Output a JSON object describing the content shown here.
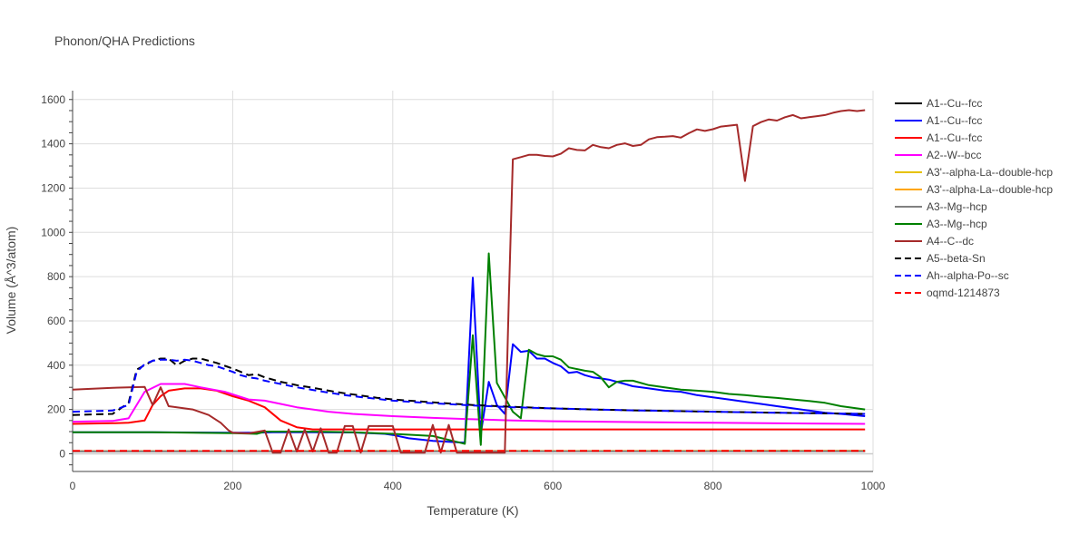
{
  "chart_data": {
    "type": "line",
    "title": "Phonon/QHA Predictions",
    "xlabel": "Temperature (K)",
    "ylabel": "Volume (Å^3/atom)",
    "xlim": [
      0,
      1000
    ],
    "ylim": [
      -80,
      1640
    ],
    "xticks": [
      0,
      200,
      400,
      600,
      800,
      1000
    ],
    "yticks": [
      0,
      200,
      400,
      600,
      800,
      1000,
      1200,
      1400,
      1600
    ],
    "grid": true,
    "legend_position": "right",
    "series": [
      {
        "name": "A1--Cu--fcc",
        "color": "#000000",
        "dash": "solid",
        "x": [
          0,
          100,
          200,
          300,
          400,
          500,
          600,
          700,
          800,
          900,
          990
        ],
        "y": [
          11.6,
          11.6,
          11.7,
          11.8,
          11.9,
          12.0,
          12.1,
          12.2,
          12.3,
          12.4,
          12.5
        ]
      },
      {
        "name": "A1--Cu--fcc",
        "color": "#0000ff",
        "dash": "solid",
        "x": [
          0,
          100,
          200,
          230,
          250,
          300,
          350,
          390,
          400,
          420,
          450,
          490,
          500,
          510,
          520,
          530,
          540,
          550,
          560,
          570,
          580,
          590,
          600,
          610,
          620,
          630,
          640,
          650,
          660,
          670,
          680,
          690,
          700,
          720,
          740,
          760,
          780,
          800,
          820,
          840,
          860,
          880,
          900,
          920,
          940,
          960,
          990
        ],
        "y": [
          97,
          97,
          95,
          95,
          97,
          97,
          96,
          90,
          85,
          70,
          58,
          50,
          795,
          90,
          325,
          220,
          180,
          495,
          460,
          465,
          430,
          430,
          410,
          395,
          365,
          370,
          355,
          345,
          340,
          335,
          325,
          315,
          305,
          295,
          285,
          280,
          265,
          255,
          245,
          235,
          225,
          215,
          205,
          195,
          185,
          180,
          170
        ]
      },
      {
        "name": "A1--Cu--fcc",
        "color": "#ff0000",
        "dash": "solid",
        "x": [
          0,
          50,
          70,
          90,
          100,
          110,
          120,
          140,
          160,
          180,
          200,
          220,
          240,
          260,
          280,
          300,
          400,
          500,
          600,
          700,
          800,
          900,
          990
        ],
        "y": [
          135,
          138,
          140,
          150,
          220,
          260,
          285,
          295,
          295,
          285,
          260,
          240,
          210,
          150,
          120,
          110,
          110,
          110,
          110,
          110,
          110,
          110,
          110
        ]
      },
      {
        "name": "A2--W--bcc",
        "color": "#ff00ff",
        "dash": "solid",
        "x": [
          0,
          50,
          70,
          90,
          110,
          140,
          160,
          190,
          220,
          240,
          260,
          280,
          300,
          320,
          350,
          400,
          450,
          500,
          550,
          600,
          700,
          800,
          900,
          990
        ],
        "y": [
          145,
          148,
          160,
          280,
          315,
          315,
          300,
          280,
          245,
          240,
          225,
          210,
          200,
          190,
          180,
          170,
          162,
          156,
          150,
          147,
          143,
          140,
          137,
          135
        ]
      },
      {
        "name": "A3'--alpha-La--double-hcp",
        "color": "#e6c200",
        "dash": "solid",
        "x": [
          0,
          200,
          400,
          600,
          800,
          990
        ],
        "y": [
          12.0,
          12.1,
          12.2,
          12.3,
          12.4,
          12.5
        ]
      },
      {
        "name": "A3'--alpha-La--double-hcp",
        "color": "#ffa500",
        "dash": "solid",
        "x": [
          0,
          200,
          400,
          600,
          800,
          990
        ],
        "y": [
          12.2,
          12.3,
          12.4,
          12.5,
          12.6,
          12.7
        ]
      },
      {
        "name": "A3--Mg--hcp",
        "color": "#808080",
        "dash": "solid",
        "x": [
          0,
          200,
          400,
          600,
          800,
          990
        ],
        "y": [
          11.0,
          11.1,
          11.2,
          11.3,
          11.4,
          11.5
        ]
      },
      {
        "name": "A3--Mg--hcp",
        "color": "#008000",
        "dash": "solid",
        "x": [
          0,
          100,
          200,
          230,
          240,
          300,
          350,
          400,
          450,
          490,
          500,
          510,
          520,
          530,
          550,
          560,
          570,
          580,
          590,
          600,
          610,
          620,
          640,
          650,
          660,
          670,
          680,
          690,
          700,
          720,
          740,
          760,
          780,
          800,
          820,
          840,
          860,
          880,
          900,
          920,
          940,
          960,
          990
        ],
        "y": [
          97,
          97,
          93,
          90,
          100,
          100,
          97,
          90,
          80,
          45,
          535,
          40,
          905,
          320,
          190,
          160,
          470,
          450,
          440,
          440,
          425,
          390,
          375,
          370,
          345,
          300,
          325,
          330,
          330,
          310,
          300,
          290,
          285,
          280,
          270,
          265,
          258,
          252,
          245,
          238,
          230,
          215,
          200
        ]
      },
      {
        "name": "A4--C--dc",
        "color": "#a52a2a",
        "dash": "solid",
        "x": [
          0,
          50,
          90,
          100,
          110,
          120,
          150,
          170,
          185,
          195,
          200,
          220,
          240,
          250,
          260,
          270,
          280,
          290,
          300,
          310,
          320,
          330,
          340,
          350,
          360,
          370,
          390,
          400,
          410,
          420,
          430,
          440,
          450,
          460,
          470,
          480,
          490,
          500,
          510,
          520,
          530,
          540,
          545,
          550,
          560,
          570,
          580,
          590,
          600,
          610,
          620,
          630,
          640,
          650,
          660,
          670,
          680,
          690,
          700,
          710,
          720,
          730,
          740,
          750,
          760,
          770,
          780,
          790,
          800,
          810,
          820,
          830,
          840,
          850,
          860,
          870,
          880,
          890,
          900,
          910,
          920,
          930,
          940,
          950,
          960,
          970,
          980,
          990
        ],
        "y": [
          290,
          298,
          302,
          220,
          300,
          215,
          200,
          175,
          140,
          105,
          95,
          92,
          105,
          5,
          5,
          110,
          10,
          110,
          10,
          115,
          5,
          5,
          125,
          125,
          5,
          125,
          125,
          125,
          5,
          5,
          5,
          5,
          130,
          5,
          130,
          5,
          5,
          5,
          5,
          5,
          5,
          5,
          700,
          1330,
          1340,
          1350,
          1350,
          1345,
          1343,
          1355,
          1380,
          1372,
          1370,
          1395,
          1385,
          1380,
          1395,
          1402,
          1390,
          1395,
          1420,
          1430,
          1432,
          1435,
          1428,
          1448,
          1465,
          1458,
          1466,
          1478,
          1482,
          1486,
          1232,
          1480,
          1498,
          1510,
          1505,
          1520,
          1530,
          1515,
          1520,
          1525,
          1530,
          1540,
          1548,
          1552,
          1548,
          1552
        ]
      },
      {
        "name": "A5--beta-Sn",
        "color": "#000000",
        "dash": "dash",
        "x": [
          0,
          50,
          70,
          80,
          90,
          100,
          110,
          120,
          130,
          140,
          150,
          160,
          170,
          180,
          200,
          210,
          220,
          230,
          240,
          260,
          280,
          300,
          320,
          340,
          360,
          380,
          400,
          450,
          500,
          550,
          600,
          650,
          700,
          750,
          800,
          850,
          900,
          950,
          990
        ],
        "y": [
          175,
          180,
          230,
          380,
          400,
          420,
          430,
          430,
          400,
          420,
          430,
          430,
          420,
          410,
          385,
          370,
          355,
          360,
          345,
          325,
          310,
          298,
          285,
          273,
          263,
          253,
          245,
          232,
          220,
          212,
          205,
          200,
          196,
          193,
          190,
          187,
          184,
          182,
          180
        ]
      },
      {
        "name": "Ah--alpha-Po--sc",
        "color": "#0000ff",
        "dash": "dash",
        "x": [
          0,
          50,
          70,
          80,
          90,
          100,
          110,
          120,
          130,
          140,
          150,
          160,
          170,
          180,
          200,
          210,
          220,
          230,
          240,
          260,
          280,
          300,
          320,
          340,
          360,
          380,
          400,
          450,
          500,
          550,
          600,
          650,
          700,
          750,
          800,
          850,
          900,
          950,
          990
        ],
        "y": [
          190,
          195,
          220,
          370,
          405,
          420,
          425,
          425,
          420,
          425,
          420,
          410,
          400,
          395,
          370,
          355,
          345,
          340,
          330,
          315,
          300,
          288,
          276,
          265,
          256,
          248,
          240,
          228,
          218,
          210,
          205,
          200,
          196,
          193,
          190,
          187,
          184,
          182,
          180
        ]
      },
      {
        "name": "oqmd-1214873",
        "color": "#ff0000",
        "dash": "dash",
        "x": [
          0,
          200,
          400,
          600,
          800,
          990
        ],
        "y": [
          12.8,
          12.9,
          13.0,
          13.1,
          13.2,
          13.3
        ]
      }
    ]
  }
}
